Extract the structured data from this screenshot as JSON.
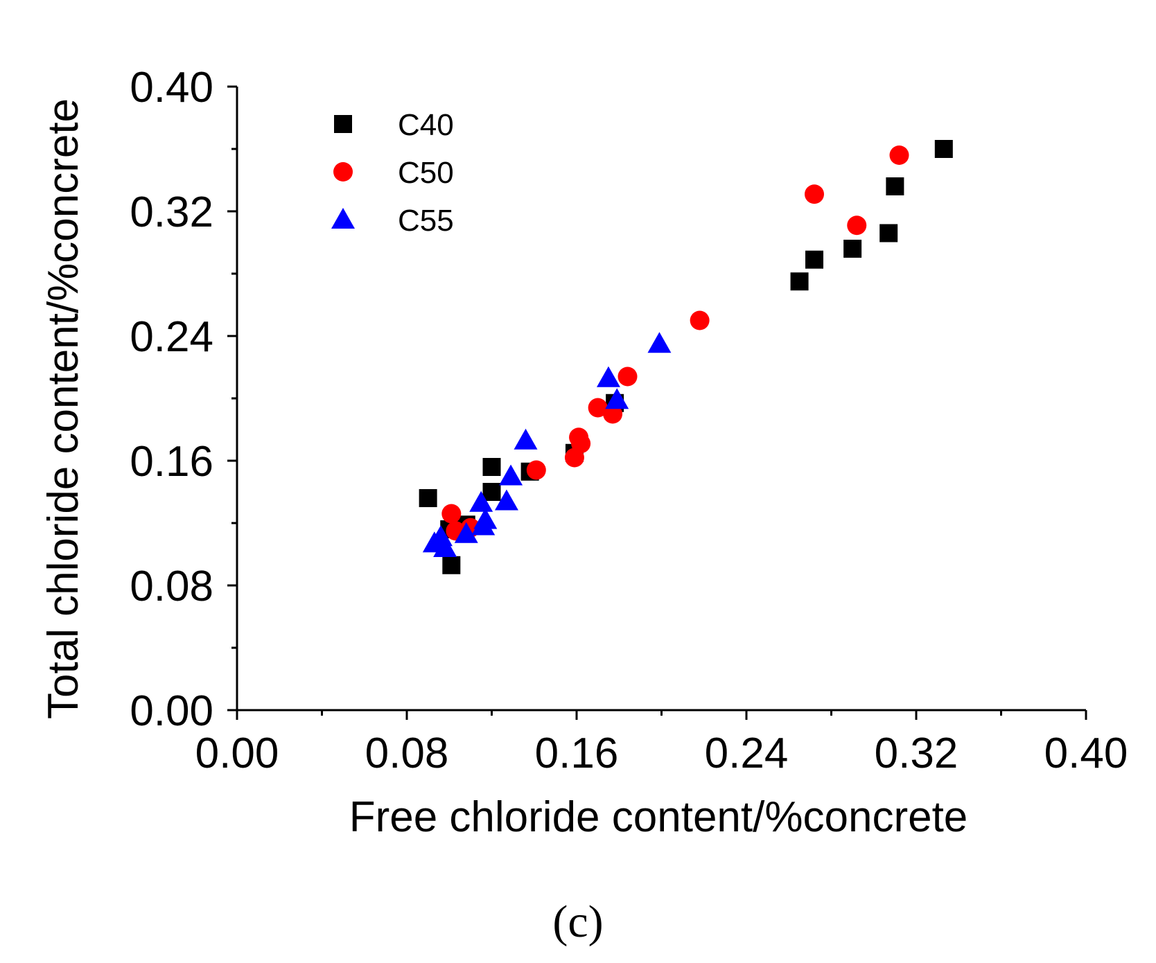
{
  "chart_data": {
    "type": "scatter",
    "title": "",
    "xlabel": "Free chloride content/%concrete",
    "ylabel": "Total chloride content/%concrete",
    "xlim": [
      0.0,
      0.4
    ],
    "ylim": [
      0.0,
      0.4
    ],
    "x_ticks": [
      "0.00",
      "0.08",
      "0.16",
      "0.24",
      "0.32",
      "0.40"
    ],
    "y_ticks": [
      "0.00",
      "0.08",
      "0.16",
      "0.24",
      "0.32",
      "0.40"
    ],
    "grid": false,
    "legend_position": "top-left",
    "panel_label": "(c)",
    "series": [
      {
        "name": "C40",
        "marker": "square",
        "color": "#000000",
        "points": [
          [
            0.09,
            0.136
          ],
          [
            0.101,
            0.093
          ],
          [
            0.1,
            0.116
          ],
          [
            0.108,
            0.119
          ],
          [
            0.12,
            0.14
          ],
          [
            0.12,
            0.156
          ],
          [
            0.138,
            0.153
          ],
          [
            0.159,
            0.165
          ],
          [
            0.178,
            0.197
          ],
          [
            0.265,
            0.275
          ],
          [
            0.272,
            0.289
          ],
          [
            0.29,
            0.296
          ],
          [
            0.307,
            0.306
          ],
          [
            0.31,
            0.336
          ],
          [
            0.333,
            0.36
          ]
        ]
      },
      {
        "name": "C50",
        "marker": "circle",
        "color": "#ff0000",
        "points": [
          [
            0.101,
            0.126
          ],
          [
            0.103,
            0.115
          ],
          [
            0.11,
            0.117
          ],
          [
            0.141,
            0.154
          ],
          [
            0.159,
            0.162
          ],
          [
            0.161,
            0.175
          ],
          [
            0.162,
            0.171
          ],
          [
            0.17,
            0.194
          ],
          [
            0.177,
            0.19
          ],
          [
            0.184,
            0.214
          ],
          [
            0.218,
            0.25
          ],
          [
            0.272,
            0.331
          ],
          [
            0.292,
            0.311
          ],
          [
            0.312,
            0.356
          ]
        ]
      },
      {
        "name": "C55",
        "marker": "triangle",
        "color": "#0000ff",
        "points": [
          [
            0.093,
            0.107
          ],
          [
            0.096,
            0.111
          ],
          [
            0.098,
            0.104
          ],
          [
            0.108,
            0.113
          ],
          [
            0.116,
            0.118
          ],
          [
            0.117,
            0.122
          ],
          [
            0.115,
            0.133
          ],
          [
            0.127,
            0.134
          ],
          [
            0.129,
            0.15
          ],
          [
            0.136,
            0.173
          ],
          [
            0.175,
            0.213
          ],
          [
            0.179,
            0.199
          ],
          [
            0.199,
            0.235
          ]
        ]
      }
    ]
  },
  "colors": {
    "axis": "#000000",
    "c40": "#000000",
    "c50": "#ff0000",
    "c55": "#0000ff"
  }
}
